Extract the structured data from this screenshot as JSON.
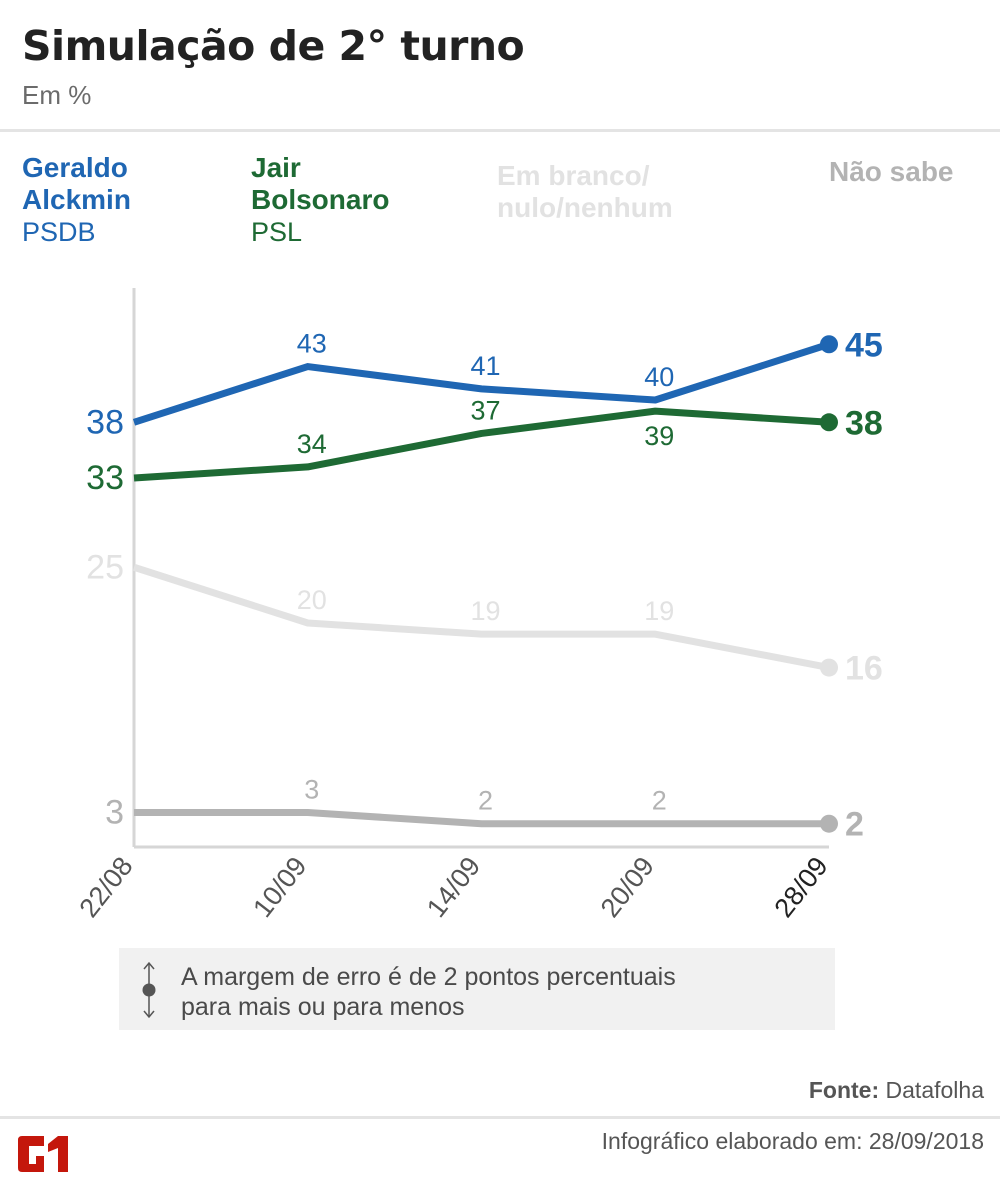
{
  "header": {
    "title": "Simulação de 2° turno",
    "subtitle": "Em %"
  },
  "legend": [
    {
      "name_line1": "Geraldo",
      "name_line2": "Alckmin",
      "party": "PSDB",
      "color": "#1f66b3"
    },
    {
      "name_line1": "Jair",
      "name_line2": "Bolsonaro",
      "party": "PSL",
      "color": "#1e6a34"
    },
    {
      "name_line1": "Em branco/",
      "name_line2": "nulo/nenhum",
      "party": "",
      "color": "#e2e2e2"
    },
    {
      "name_line1": "Não sabe",
      "name_line2": "",
      "party": "",
      "color": "#b3b3b3"
    }
  ],
  "chart_data": {
    "type": "line",
    "title": "Simulação de 2° turno",
    "subtitle": "Em %",
    "xlabel": "",
    "ylabel": "",
    "x": [
      "22/08",
      "10/09",
      "14/09",
      "20/09",
      "28/09"
    ],
    "ylim": [
      0,
      45
    ],
    "grid": false,
    "legend_position": "top",
    "series": [
      {
        "name": "Geraldo Alckmin (PSDB)",
        "color": "#1f66b3",
        "values": [
          38,
          43,
          41,
          40,
          45
        ],
        "label_pos": [
          "left",
          "above",
          "above",
          "above",
          "right"
        ]
      },
      {
        "name": "Jair Bolsonaro (PSL)",
        "color": "#1e6a34",
        "values": [
          33,
          34,
          37,
          39,
          38
        ],
        "label_pos": [
          "left",
          "above",
          "above",
          "below",
          "right"
        ]
      },
      {
        "name": "Em branco/nulo/nenhum",
        "color": "#e2e2e2",
        "values": [
          25,
          20,
          19,
          19,
          16
        ],
        "label_pos": [
          "left",
          "above",
          "above",
          "above",
          "right"
        ]
      },
      {
        "name": "Não sabe",
        "color": "#b3b3b3",
        "values": [
          3,
          3,
          2,
          2,
          2
        ],
        "label_pos": [
          "left",
          "above",
          "above",
          "above",
          "right"
        ]
      }
    ],
    "highlighted_x": "28/09"
  },
  "note": {
    "text_line1": "A margem de erro é de 2 pontos percentuais",
    "text_line2": "para mais ou para menos"
  },
  "footer": {
    "source_label": "Fonte:",
    "source_value": "Datafolha",
    "made_on": "Infográfico elaborado em: 28/09/2018",
    "logo_text": "G1",
    "logo_color": "#c4170c"
  }
}
